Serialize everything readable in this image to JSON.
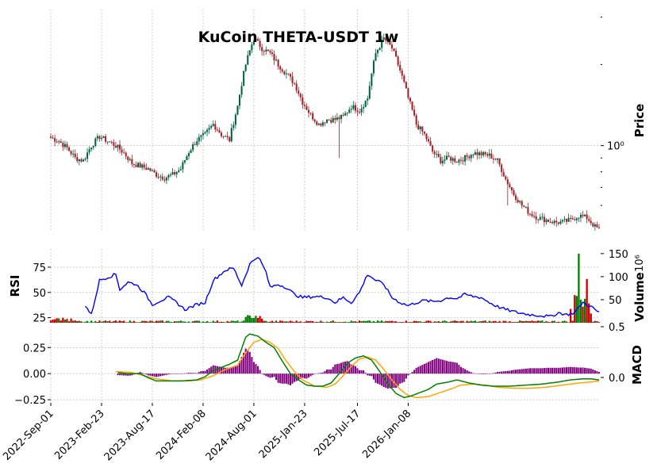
{
  "chart_data": {
    "type": "candlestick",
    "title": "KuCoin THETA-USDT 1w",
    "x_tick_labels": [
      "2022-Sep-01",
      "2023-Feb-23",
      "2023-Aug-17",
      "2024-Feb-08",
      "2024-Aug-01",
      "2025-Jan-23",
      "2025-Jul-17",
      "2026-Jan-08"
    ],
    "price_panel": {
      "ylabel": "Price",
      "scale": "log",
      "tick_label": "10⁰",
      "tick_value": 1.0,
      "ylim": [
        0.48,
        3.2
      ],
      "anchors_price": [
        [
          0,
          1.07
        ],
        [
          4,
          1.04
        ],
        [
          8,
          0.98
        ],
        [
          12,
          0.9
        ],
        [
          16,
          0.88
        ],
        [
          20,
          1.0
        ],
        [
          24,
          1.08
        ],
        [
          28,
          1.04
        ],
        [
          32,
          1.0
        ],
        [
          36,
          0.94
        ],
        [
          40,
          0.86
        ],
        [
          44,
          0.84
        ],
        [
          48,
          0.82
        ],
        [
          52,
          0.78
        ],
        [
          56,
          0.76
        ],
        [
          60,
          0.78
        ],
        [
          64,
          0.82
        ],
        [
          68,
          0.95
        ],
        [
          72,
          1.05
        ],
        [
          76,
          1.1
        ],
        [
          80,
          1.2
        ],
        [
          84,
          1.1
        ],
        [
          88,
          1.05
        ],
        [
          92,
          1.4
        ],
        [
          96,
          2.0
        ],
        [
          100,
          2.5
        ],
        [
          104,
          2.3
        ],
        [
          108,
          2.2
        ],
        [
          112,
          2.0
        ],
        [
          116,
          1.85
        ],
        [
          120,
          1.7
        ],
        [
          124,
          1.45
        ],
        [
          128,
          1.3
        ],
        [
          132,
          1.2
        ],
        [
          136,
          1.25
        ],
        [
          140,
          1.25
        ],
        [
          144,
          1.28
        ],
        [
          148,
          1.4
        ],
        [
          152,
          1.35
        ],
        [
          156,
          1.5
        ],
        [
          160,
          2.2
        ],
        [
          164,
          2.5
        ],
        [
          168,
          2.3
        ],
        [
          172,
          1.9
        ],
        [
          176,
          1.5
        ],
        [
          180,
          1.2
        ],
        [
          184,
          1.1
        ],
        [
          188,
          0.95
        ],
        [
          192,
          0.88
        ],
        [
          196,
          0.9
        ],
        [
          200,
          0.88
        ],
        [
          204,
          0.9
        ],
        [
          208,
          0.94
        ],
        [
          212,
          0.93
        ],
        [
          216,
          0.92
        ],
        [
          220,
          0.88
        ],
        [
          224,
          0.75
        ],
        [
          228,
          0.66
        ],
        [
          232,
          0.6
        ],
        [
          236,
          0.56
        ],
        [
          240,
          0.54
        ],
        [
          244,
          0.53
        ],
        [
          248,
          0.52
        ],
        [
          252,
          0.52
        ],
        [
          256,
          0.53
        ],
        [
          260,
          0.55
        ],
        [
          264,
          0.54
        ],
        [
          268,
          0.5
        ],
        [
          270,
          0.49
        ]
      ],
      "up_color": "#006340",
      "down_color": "#a02128"
    },
    "volume_panel": {
      "ylabel": "Volume",
      "unit": "10⁶",
      "ticks": [
        50,
        100,
        150
      ],
      "ylim": [
        0,
        160
      ],
      "spike_anchors": [
        [
          256,
          30
        ],
        [
          258,
          60
        ],
        [
          259,
          58
        ],
        [
          260,
          150
        ],
        [
          261,
          50
        ],
        [
          262,
          35
        ],
        [
          263,
          52
        ],
        [
          264,
          95
        ],
        [
          265,
          42
        ],
        [
          266,
          20
        ]
      ]
    },
    "rsi_panel": {
      "ylabel": "RSI",
      "ticks": [
        25,
        50,
        75
      ],
      "ylim": [
        20,
        93
      ],
      "anchors_rsi": [
        [
          17,
          37
        ],
        [
          20,
          28
        ],
        [
          24,
          62
        ],
        [
          28,
          65
        ],
        [
          32,
          68
        ],
        [
          34,
          53
        ],
        [
          38,
          60
        ],
        [
          42,
          58
        ],
        [
          46,
          50
        ],
        [
          50,
          38
        ],
        [
          54,
          42
        ],
        [
          58,
          45
        ],
        [
          62,
          40
        ],
        [
          66,
          33
        ],
        [
          72,
          38
        ],
        [
          76,
          40
        ],
        [
          80,
          62
        ],
        [
          86,
          72
        ],
        [
          90,
          74
        ],
        [
          94,
          57
        ],
        [
          98,
          78
        ],
        [
          102,
          86
        ],
        [
          106,
          70
        ],
        [
          108,
          55
        ],
        [
          112,
          58
        ],
        [
          116,
          55
        ],
        [
          120,
          48
        ],
        [
          124,
          45
        ],
        [
          130,
          46
        ],
        [
          136,
          45
        ],
        [
          140,
          40
        ],
        [
          144,
          45
        ],
        [
          148,
          40
        ],
        [
          152,
          50
        ],
        [
          156,
          68
        ],
        [
          160,
          62
        ],
        [
          164,
          58
        ],
        [
          168,
          45
        ],
        [
          172,
          40
        ],
        [
          176,
          37
        ],
        [
          180,
          40
        ],
        [
          184,
          42
        ],
        [
          188,
          41
        ],
        [
          192,
          42
        ],
        [
          196,
          45
        ],
        [
          200,
          44
        ],
        [
          204,
          48
        ],
        [
          208,
          46
        ],
        [
          212,
          45
        ],
        [
          216,
          40
        ],
        [
          220,
          36
        ],
        [
          224,
          33
        ],
        [
          230,
          30
        ],
        [
          236,
          28
        ],
        [
          242,
          27
        ],
        [
          246,
          26
        ],
        [
          250,
          30
        ],
        [
          254,
          28
        ],
        [
          258,
          30
        ],
        [
          262,
          40
        ],
        [
          266,
          36
        ],
        [
          270,
          30
        ]
      ]
    },
    "macd_panel": {
      "ylabel": "MACD",
      "ticks": [
        -0.25,
        0.0,
        0.25
      ],
      "tick_labels": [
        "−0.25",
        "0.00",
        "0.25"
      ],
      "ylim": [
        -0.28,
        0.45
      ],
      "right_ticks": [
        0.0,
        0.5
      ],
      "right_tick_labels": [
        "0.0",
        "0.5"
      ],
      "right_ylim": [
        -0.25,
        0.5
      ],
      "anchors_macd": [
        [
          33,
          0.01
        ],
        [
          38,
          0.0
        ],
        [
          44,
          0.0
        ],
        [
          48,
          -0.04
        ],
        [
          52,
          -0.07
        ],
        [
          58,
          -0.07
        ],
        [
          64,
          -0.07
        ],
        [
          72,
          -0.06
        ],
        [
          76,
          -0.03
        ],
        [
          80,
          0.03
        ],
        [
          88,
          0.09
        ],
        [
          92,
          0.13
        ],
        [
          96,
          0.35
        ],
        [
          98,
          0.38
        ],
        [
          102,
          0.36
        ],
        [
          106,
          0.3
        ],
        [
          110,
          0.25
        ],
        [
          114,
          0.12
        ],
        [
          118,
          0.0
        ],
        [
          122,
          -0.06
        ],
        [
          126,
          -0.11
        ],
        [
          130,
          -0.12
        ],
        [
          134,
          -0.12
        ],
        [
          138,
          -0.09
        ],
        [
          142,
          0.0
        ],
        [
          146,
          0.1
        ],
        [
          150,
          0.15
        ],
        [
          154,
          0.17
        ],
        [
          158,
          0.13
        ],
        [
          162,
          0.02
        ],
        [
          166,
          -0.1
        ],
        [
          170,
          -0.19
        ],
        [
          174,
          -0.23
        ],
        [
          178,
          -0.21
        ],
        [
          182,
          -0.18
        ],
        [
          186,
          -0.15
        ],
        [
          190,
          -0.1
        ],
        [
          196,
          -0.08
        ],
        [
          200,
          -0.06
        ],
        [
          206,
          -0.09
        ],
        [
          212,
          -0.11
        ],
        [
          218,
          -0.12
        ],
        [
          226,
          -0.12
        ],
        [
          234,
          -0.11
        ],
        [
          242,
          -0.1
        ],
        [
          250,
          -0.08
        ],
        [
          256,
          -0.06
        ],
        [
          262,
          -0.05
        ],
        [
          266,
          -0.05
        ],
        [
          270,
          -0.06
        ]
      ],
      "anchors_signal": [
        [
          32,
          0.02
        ],
        [
          40,
          0.01
        ],
        [
          46,
          -0.02
        ],
        [
          52,
          -0.05
        ],
        [
          60,
          -0.07
        ],
        [
          68,
          -0.07
        ],
        [
          74,
          -0.06
        ],
        [
          80,
          -0.02
        ],
        [
          86,
          0.04
        ],
        [
          92,
          0.08
        ],
        [
          96,
          0.2
        ],
        [
          100,
          0.3
        ],
        [
          104,
          0.33
        ],
        [
          108,
          0.3
        ],
        [
          112,
          0.24
        ],
        [
          116,
          0.12
        ],
        [
          120,
          0.02
        ],
        [
          124,
          -0.06
        ],
        [
          130,
          -0.12
        ],
        [
          136,
          -0.13
        ],
        [
          140,
          -0.1
        ],
        [
          144,
          -0.02
        ],
        [
          148,
          0.07
        ],
        [
          152,
          0.14
        ],
        [
          156,
          0.16
        ],
        [
          160,
          0.13
        ],
        [
          164,
          0.04
        ],
        [
          168,
          -0.06
        ],
        [
          172,
          -0.15
        ],
        [
          176,
          -0.21
        ],
        [
          180,
          -0.23
        ],
        [
          186,
          -0.22
        ],
        [
          192,
          -0.18
        ],
        [
          198,
          -0.14
        ],
        [
          202,
          -0.11
        ],
        [
          208,
          -0.1
        ],
        [
          214,
          -0.11
        ],
        [
          220,
          -0.13
        ],
        [
          228,
          -0.14
        ],
        [
          236,
          -0.14
        ],
        [
          244,
          -0.13
        ],
        [
          252,
          -0.11
        ],
        [
          260,
          -0.09
        ],
        [
          266,
          -0.08
        ],
        [
          270,
          -0.07
        ]
      ],
      "macd_color": "#008000",
      "signal_color": "#ffa500",
      "hist_color": "#800080"
    },
    "bar_count": 271,
    "grid": true
  }
}
